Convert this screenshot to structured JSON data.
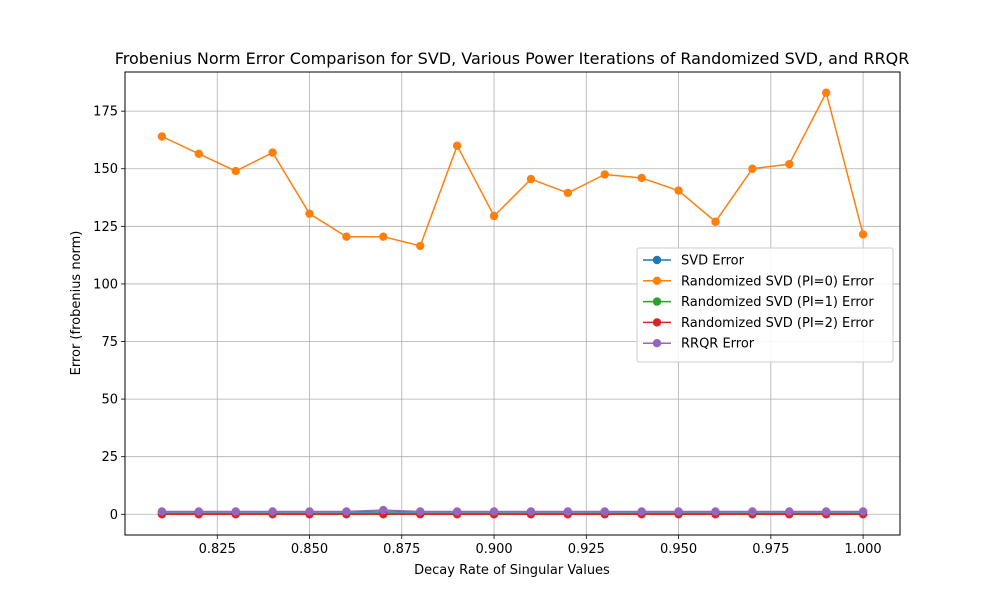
{
  "chart_data": {
    "type": "line",
    "title": "Frobenius Norm Error Comparison for SVD, Various Power Iterations of Randomized SVD, and RRQR",
    "xlabel": "Decay Rate of Singular Values",
    "ylabel": "Error (frobenius norm)",
    "xlim": [
      0.8,
      1.01
    ],
    "ylim": [
      -9,
      192
    ],
    "xticks": [
      0.825,
      0.85,
      0.875,
      0.9,
      0.925,
      0.95,
      0.975,
      1.0
    ],
    "xtick_labels": [
      "0.825",
      "0.850",
      "0.875",
      "0.900",
      "0.925",
      "0.950",
      "0.975",
      "1.000"
    ],
    "yticks": [
      0,
      25,
      50,
      75,
      100,
      125,
      150,
      175
    ],
    "ytick_labels": [
      "0",
      "25",
      "50",
      "75",
      "100",
      "125",
      "150",
      "175"
    ],
    "grid": true,
    "legend_position": "center-right",
    "x": [
      0.81,
      0.82,
      0.83,
      0.84,
      0.85,
      0.86,
      0.87,
      0.88,
      0.89,
      0.9,
      0.91,
      0.92,
      0.93,
      0.94,
      0.95,
      0.96,
      0.97,
      0.98,
      0.99,
      1.0
    ],
    "series": [
      {
        "name": "SVD Error",
        "color": "#1f77b4",
        "values": [
          1.0,
          1.0,
          1.0,
          1.0,
          1.0,
          1.0,
          1.0,
          1.0,
          1.0,
          1.0,
          1.0,
          1.0,
          1.0,
          1.0,
          1.0,
          1.0,
          1.0,
          1.0,
          1.0,
          1.0
        ]
      },
      {
        "name": "Randomized SVD (PI=0) Error",
        "color": "#ff7f0e",
        "values": [
          164,
          156.5,
          149,
          157,
          130.5,
          120.5,
          120.5,
          116.5,
          160,
          129.5,
          145.5,
          139.5,
          147.5,
          146,
          140.5,
          127,
          150,
          152,
          183,
          121.5
        ]
      },
      {
        "name": "Randomized SVD (PI=1) Error",
        "color": "#2ca02c",
        "values": [
          0.3,
          0.3,
          0.3,
          0.3,
          0.3,
          0.3,
          0.3,
          0.3,
          0.3,
          0.3,
          0.3,
          0.3,
          0.3,
          0.3,
          0.3,
          0.3,
          0.3,
          0.3,
          0.3,
          0.3
        ]
      },
      {
        "name": "Randomized SVD (PI=2) Error",
        "color": "#d62728",
        "values": [
          0.0,
          0.0,
          0.0,
          0.0,
          0.0,
          0.0,
          0.0,
          0.0,
          0.0,
          0.0,
          0.0,
          0.0,
          0.0,
          0.0,
          0.0,
          0.0,
          0.0,
          0.0,
          0.0,
          0.0
        ]
      },
      {
        "name": "RRQR Error",
        "color": "#9467bd",
        "values": [
          1.2,
          1.2,
          1.2,
          1.2,
          1.2,
          1.2,
          1.8,
          1.2,
          1.2,
          1.2,
          1.2,
          1.2,
          1.2,
          1.2,
          1.2,
          1.2,
          1.2,
          1.2,
          1.2,
          1.2
        ]
      }
    ]
  }
}
